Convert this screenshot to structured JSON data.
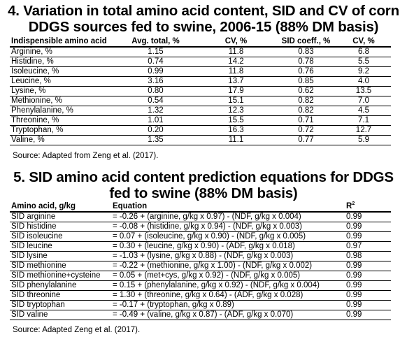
{
  "table1": {
    "title": "4. Variation in total amino acid content, SID and CV of corn DDGS sources fed to swine, 2006-15 (88% DM basis)",
    "headers": [
      "Indispensible amino acid",
      "Avg. total, %",
      "CV, %",
      "SID coeff., %",
      "CV, %"
    ],
    "rows": [
      [
        "Arginine, %",
        "1.15",
        "11.8",
        "0.83",
        "6.8"
      ],
      [
        "Histidine, %",
        "0.74",
        "14.2",
        "0.78",
        "5.5"
      ],
      [
        "Isoleucine, %",
        "0.99",
        "11.8",
        "0.76",
        "9.2"
      ],
      [
        "Leucine, %",
        "3.16",
        "13.7",
        "0.85",
        "4.0"
      ],
      [
        "Lysine, %",
        "0.80",
        "17.9",
        "0.62",
        "13.5"
      ],
      [
        "Methionine, %",
        "0.54",
        "15.1",
        "0.82",
        "7.0"
      ],
      [
        "Phenylalanine, %",
        "1.32",
        "12.3",
        "0.82",
        "4.5"
      ],
      [
        "Threonine, %",
        "1.01",
        "15.5",
        "0.71",
        "7.1"
      ],
      [
        "Tryptophan, %",
        "0.20",
        "16.3",
        "0.72",
        "12.7"
      ],
      [
        "Valine, %",
        "1.35",
        "11.1",
        "0.77",
        "5.9"
      ]
    ],
    "source": "Source: Adapted from Zeng et al. (2017)."
  },
  "table2": {
    "title": "5. SID amino acid content prediction equations for DDGS fed to swine (88% DM basis)",
    "headers": [
      "Amino acid, g/kg",
      "Equation",
      "R",
      "2"
    ],
    "rows": [
      [
        "SID arginine",
        "= -0.26 + (arginine, g/kg x 0.97) - (NDF, g/kg x 0.004)",
        "0.99"
      ],
      [
        "SID histidine",
        "= -0.08 + (histidine, g/kg x 0.94) - (NDF, g/kg x 0.003)",
        "0.99"
      ],
      [
        "SID isoleucine",
        "= 0.07 + (isoleucine, g/kg x 0.90) - (NDF, g/kg x 0.005)",
        "0.99"
      ],
      [
        "SID leucine",
        "= 0.30 + (leucine, g/kg x 0.90) - (ADF, g/kg x 0.018)",
        "0.97"
      ],
      [
        "SID lysine",
        "= -1.03 + (lysine, g/kg x 0.88) - (NDF, g/kg x 0.003)",
        "0.98"
      ],
      [
        "SID methionine",
        "= -0.22 + (methionine, g/kg x 1.00) - (NDF, g/kg x 0.002)",
        "0.99"
      ],
      [
        "SID methionine+cysteine",
        "= 0.05 + (met+cys, g/kg x 0.92) - (NDF, g/kg x 0.005)",
        "0.99"
      ],
      [
        "SID phenylalanine",
        "= 0.15 + (phenylalanine, g/kg x 0.92) - (NDF, g/kg x 0.004)",
        "0.99"
      ],
      [
        "SID threonine",
        "= 1.30 + (threonine, g/kg x 0.64) - (ADF, g/kg x 0.028)",
        "0.99"
      ],
      [
        "SID tryptophan",
        "= -0.17 + (tryptophan, g/kg x 0.89)",
        "0.99"
      ],
      [
        "SID valine",
        "= -0.49 + (valine, g/kg x 0.87) - (ADF, g/kg x 0.070)",
        "0.99"
      ]
    ],
    "source": "Source: Adapted Zeng et al. (2017)."
  }
}
